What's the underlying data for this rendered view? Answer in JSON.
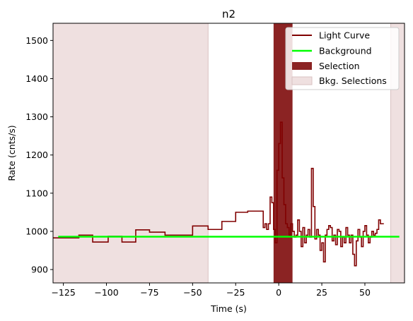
{
  "chart_data": {
    "type": "line",
    "title": "n2",
    "xlabel": "Time (s)",
    "ylabel": "Rate (cnts/s)",
    "xlim": [
      -131,
      73
    ],
    "ylim": [
      865,
      1545
    ],
    "xticks": [
      -125,
      -100,
      -75,
      -50,
      -25,
      0,
      25,
      50
    ],
    "yticks": [
      900,
      1000,
      1100,
      1200,
      1300,
      1400,
      1500
    ],
    "grid": false,
    "legend_position": "top-right",
    "legend": [
      "Light Curve",
      "Background",
      "Selection",
      "Bkg. Selections"
    ],
    "colors": {
      "light_curve": "#800000",
      "background": "#00ff00",
      "selection": "#8b2323",
      "bkg_selection": "#efe0e0",
      "bkg_selection_edge": "#d9c2c2"
    },
    "background_level": 986,
    "background_x": [
      -128,
      70
    ],
    "bkg_selections": [
      [
        -131,
        -41
      ],
      [
        65,
        73
      ]
    ],
    "selection": [
      -3,
      8
    ],
    "light_curve_step_x": [
      -131,
      -116,
      -116,
      -108,
      -108,
      -99,
      -99,
      -91,
      -91,
      -83,
      -83,
      -75,
      -75,
      -66,
      -66,
      -50,
      -50,
      -41,
      -41,
      -33,
      -33,
      -25,
      -25,
      -18,
      -18,
      -9,
      -9,
      -8,
      -8,
      -7,
      -7,
      -6,
      -6,
      -5,
      -5,
      -4,
      -4,
      -3,
      -3,
      -2,
      -2,
      -1,
      -1,
      0,
      0,
      1,
      1,
      2,
      2,
      3,
      3,
      4,
      4,
      5,
      5,
      6,
      6,
      7,
      7,
      8,
      8,
      9,
      9,
      10,
      10,
      11,
      11,
      12,
      12,
      13,
      13,
      14,
      14,
      15,
      15,
      16,
      16,
      17,
      17,
      18,
      18,
      19,
      19,
      20,
      20,
      21,
      21,
      22,
      22,
      23,
      23,
      24,
      24,
      25,
      25,
      26,
      26,
      27,
      27,
      28,
      28,
      29,
      29,
      30,
      30,
      31,
      31,
      32,
      32,
      33,
      33,
      34,
      34,
      35,
      35,
      36,
      36,
      37,
      37,
      38,
      38,
      39,
      39,
      40,
      40,
      41,
      41,
      42,
      42,
      43,
      43,
      44,
      44,
      45,
      45,
      46,
      46,
      47,
      47,
      48,
      48,
      49,
      49,
      50,
      50,
      51,
      51,
      52,
      52,
      53,
      53,
      54,
      54,
      55,
      55,
      56,
      56,
      57,
      57,
      58,
      58,
      59,
      59,
      60,
      60,
      61
    ],
    "light_curve_step_y": [
      983,
      983,
      990,
      990,
      972,
      972,
      987,
      987,
      972,
      972,
      1004,
      1004,
      998,
      998,
      990,
      990,
      1014,
      1014,
      1005,
      1005,
      1026,
      1026,
      1050,
      1050,
      1053,
      1053,
      1010,
      1010,
      1020,
      1020,
      1005,
      1005,
      1020,
      1020,
      1090,
      1090,
      1075,
      1075,
      1005,
      1005,
      970,
      970,
      1160,
      1160,
      1230,
      1230,
      1286,
      1286,
      1140,
      1140,
      1070,
      1070,
      1020,
      1020,
      1010,
      1010,
      990,
      990,
      1020,
      1020,
      1000,
      1000,
      985,
      985,
      990,
      990,
      1030,
      1030,
      1000,
      1000,
      960,
      960,
      1010,
      1010,
      970,
      970,
      990,
      990,
      1005,
      1005,
      985,
      985,
      1165,
      1165,
      1065,
      1065,
      980,
      980,
      1005,
      1005,
      990,
      990,
      950,
      950,
      970,
      970,
      920,
      920,
      990,
      990,
      1005,
      1005,
      1015,
      1015,
      1010,
      1010,
      975,
      975,
      990,
      990,
      965,
      965,
      1005,
      1005,
      1000,
      1000,
      960,
      960,
      985,
      985,
      970,
      970,
      1010,
      1010,
      990,
      990,
      970,
      970,
      990,
      990,
      940,
      940,
      910,
      910,
      975,
      975,
      1005,
      1005,
      985,
      985,
      960,
      960,
      1000,
      1000,
      1015,
      1015,
      990,
      990,
      970,
      970,
      985,
      985,
      1000,
      1000,
      990,
      990,
      995,
      995,
      1005,
      1005,
      1030,
      1030,
      1020,
      1020,
      1020,
      1020,
      1020,
      1020,
      1020,
      1020,
      1020,
      1020
    ]
  }
}
